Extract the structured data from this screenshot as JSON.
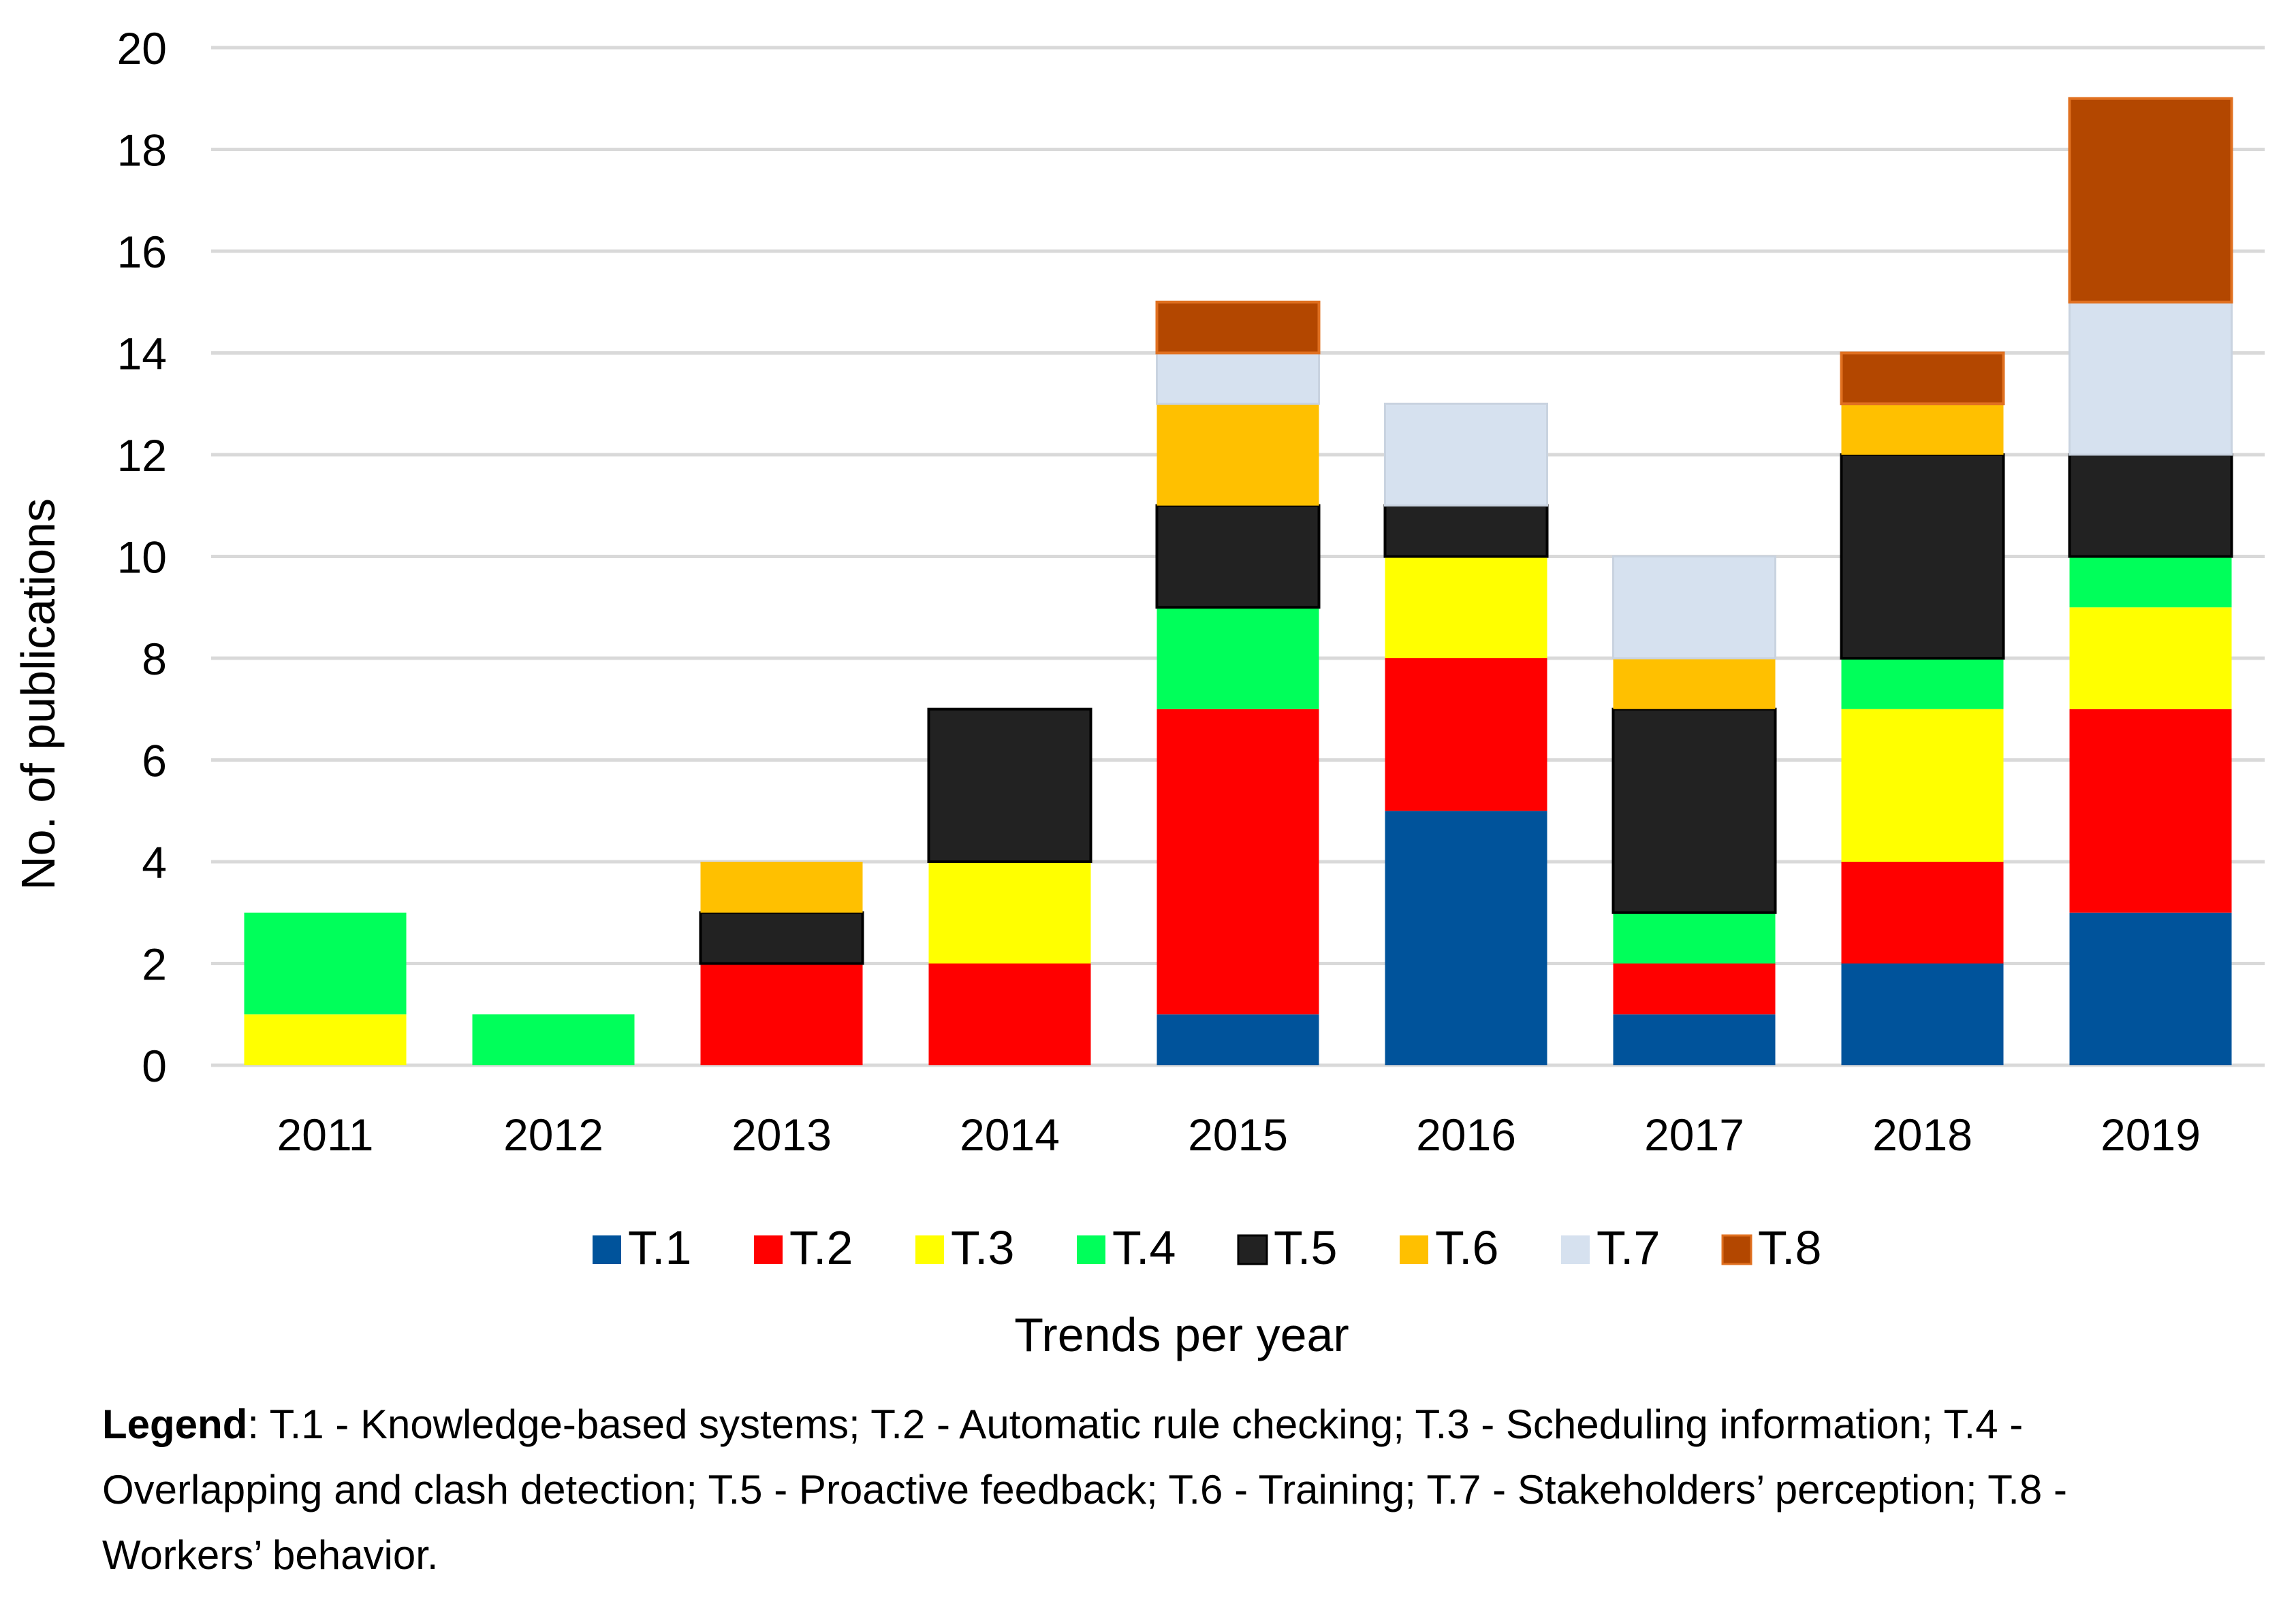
{
  "chart_data": {
    "type": "bar",
    "stacked": true,
    "title": "",
    "xlabel": "Trends per year",
    "ylabel": "No. of publications",
    "ylim": [
      0,
      20
    ],
    "yticks": [
      0,
      2,
      4,
      6,
      8,
      10,
      12,
      14,
      16,
      18,
      20
    ],
    "grid": true,
    "legend_position": "bottom",
    "categories": [
      "2011",
      "2012",
      "2013",
      "2014",
      "2015",
      "2016",
      "2017",
      "2018",
      "2019"
    ],
    "series": [
      {
        "name": "T.1",
        "color": "#00539B",
        "values": [
          0,
          0,
          0,
          0,
          1,
          5,
          1,
          2,
          3
        ]
      },
      {
        "name": "T.2",
        "color": "#FF0000",
        "values": [
          0,
          0,
          2,
          2,
          6,
          3,
          1,
          2,
          4
        ]
      },
      {
        "name": "T.3",
        "color": "#FFFF00",
        "values": [
          1,
          0,
          0,
          2,
          0,
          2,
          0,
          3,
          2
        ]
      },
      {
        "name": "T.4",
        "color": "#00FF5A",
        "values": [
          2,
          1,
          0,
          0,
          2,
          0,
          1,
          1,
          1
        ]
      },
      {
        "name": "T.5",
        "color": "#222222",
        "values": [
          0,
          0,
          1,
          3,
          2,
          1,
          4,
          4,
          2
        ]
      },
      {
        "name": "T.6",
        "color": "#FFC000",
        "values": [
          0,
          0,
          1,
          0,
          2,
          0,
          1,
          1,
          0
        ]
      },
      {
        "name": "T.7",
        "color": "#D6E1EF",
        "values": [
          0,
          0,
          0,
          0,
          1,
          2,
          2,
          0,
          3
        ]
      },
      {
        "name": "T.8",
        "color": "#B34700",
        "values": [
          0,
          0,
          0,
          0,
          1,
          0,
          0,
          1,
          4
        ]
      }
    ]
  },
  "caption": {
    "legend_bold": "Legend",
    "legend_text": ": T.1 - Knowledge-based systems; T.2 - Automatic rule checking; T.3 - Scheduling information; T.4 - Overlapping and clash detection; T.5 - Proactive feedback; T.6 - Training; T.7 - Stakeholders’ perception; T.8 - Workers’ behavior."
  }
}
